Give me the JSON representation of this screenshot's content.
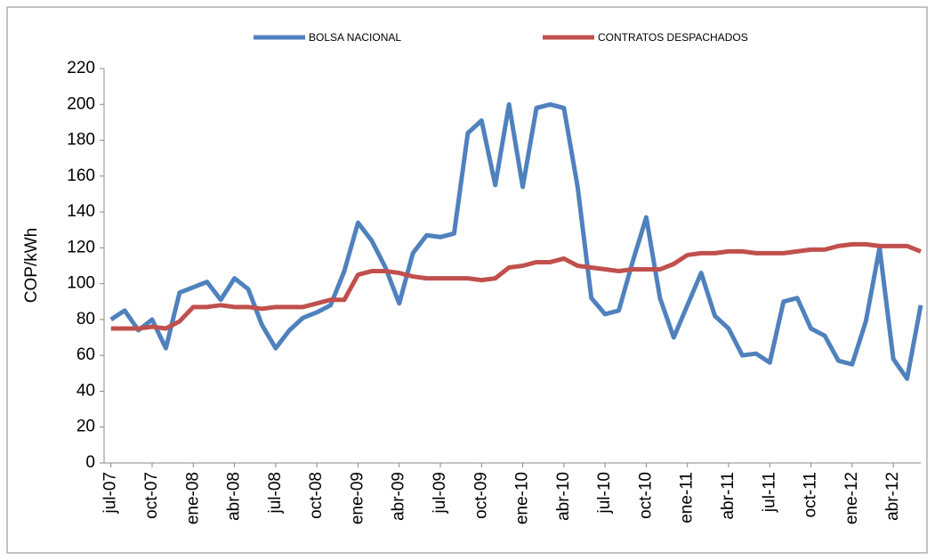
{
  "chart_data": {
    "type": "line",
    "y_label": "COP/kWh",
    "categories": [
      "jul-07",
      null,
      null,
      "oct-07",
      null,
      null,
      "ene-08",
      null,
      null,
      "abr-08",
      null,
      null,
      "jul-08",
      null,
      null,
      "oct-08",
      null,
      null,
      "ene-09",
      null,
      null,
      "abr-09",
      null,
      null,
      "jul-09",
      null,
      null,
      "oct-09",
      null,
      null,
      "ene-10",
      null,
      null,
      "abr-10",
      null,
      null,
      "jul-10",
      null,
      null,
      "oct-10",
      null,
      null,
      "ene-11",
      null,
      null,
      "abr-11",
      null,
      null,
      "jul-11",
      null,
      null,
      "oct-11",
      null,
      null,
      "ene-12",
      null,
      null,
      "abr-12",
      null,
      null
    ],
    "series": [
      {
        "name": "BOLSA NACIONAL",
        "color": "#4f81bd",
        "values": [
          80,
          85,
          74,
          80,
          64,
          95,
          98,
          101,
          91,
          103,
          97,
          77,
          64,
          74,
          81,
          84,
          88,
          107,
          134,
          124,
          109,
          89,
          117,
          127,
          126,
          128,
          184,
          191,
          155,
          200,
          154,
          198,
          200,
          198,
          154,
          92,
          83,
          85,
          112,
          137,
          92,
          70,
          88,
          106,
          82,
          75,
          60,
          61,
          56,
          90,
          92,
          75,
          71,
          57,
          55,
          79,
          120,
          58,
          47,
          88
        ]
      },
      {
        "name": "CONTRATOS DESPACHADOS",
        "color": "#c0504d",
        "values": [
          75,
          75,
          75,
          76,
          75,
          79,
          87,
          87,
          88,
          87,
          87,
          86,
          87,
          87,
          87,
          89,
          91,
          91,
          105,
          107,
          107,
          106,
          104,
          103,
          103,
          103,
          103,
          102,
          103,
          109,
          110,
          112,
          112,
          114,
          110,
          109,
          108,
          107,
          108,
          108,
          108,
          111,
          116,
          117,
          117,
          118,
          118,
          117,
          117,
          117,
          118,
          119,
          119,
          121,
          122,
          122,
          121,
          121,
          121,
          118
        ]
      }
    ],
    "ylim": [
      0,
      220
    ],
    "yticks": [
      0,
      20,
      40,
      60,
      80,
      100,
      120,
      140,
      160,
      180,
      200,
      220
    ],
    "legend": "top"
  }
}
